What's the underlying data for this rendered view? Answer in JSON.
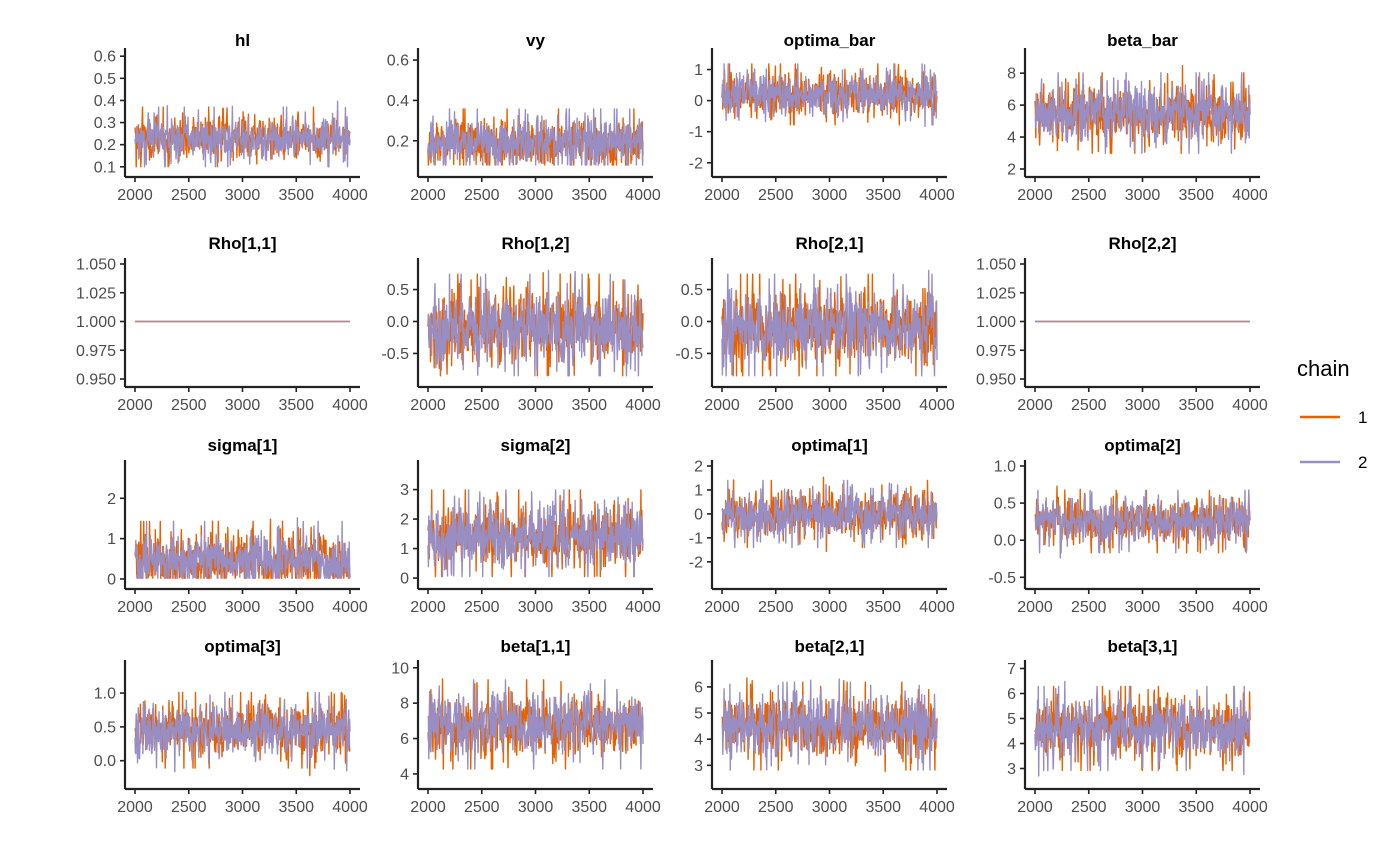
{
  "legend": {
    "title": "chain",
    "entries": [
      {
        "label": "1",
        "color": "#e66101"
      },
      {
        "label": "2",
        "color": "#998ec3"
      }
    ]
  },
  "chart_data": {
    "type": "line",
    "x_range": [
      2000,
      4000
    ],
    "x_ticks": [
      2000,
      2500,
      3000,
      3500,
      4000
    ],
    "x_tick_labels": [
      "2000",
      "2500",
      "3000",
      "3500",
      "4000"
    ],
    "legend_position": "right",
    "grid": false,
    "panels": [
      {
        "title": "hl",
        "ylim": [
          0.09,
          0.61
        ],
        "y_ticks": [
          0.1,
          0.2,
          0.3,
          0.4,
          0.5,
          0.6
        ],
        "y_tick_labels": [
          "0.1",
          "0.2",
          "0.3",
          "0.4",
          "0.5",
          "0.6"
        ],
        "center": 0.23,
        "spread": 0.05,
        "min": 0.1,
        "max": 0.57
      },
      {
        "title": "vy",
        "ylim": [
          0.06,
          0.63
        ],
        "y_ticks": [
          0.2,
          0.4,
          0.6
        ],
        "y_tick_labels": [
          "0.2",
          "0.4",
          "0.6"
        ],
        "center": 0.19,
        "spread": 0.06,
        "min": 0.08,
        "max": 0.62
      },
      {
        "title": "optima_bar",
        "ylim": [
          -2.2,
          1.5
        ],
        "y_ticks": [
          -2,
          -1,
          0,
          1
        ],
        "y_tick_labels": [
          "-2",
          "-1",
          "0",
          "1"
        ],
        "center": 0.2,
        "spread": 0.35,
        "min": -2.1,
        "max": 1.4
      },
      {
        "title": "beta_bar",
        "ylim": [
          2.0,
          9.2
        ],
        "y_ticks": [
          2,
          4,
          6,
          8
        ],
        "y_tick_labels": [
          "2",
          "4",
          "6",
          "8"
        ],
        "center": 5.5,
        "spread": 0.9,
        "min": 2.3,
        "max": 9.0
      },
      {
        "title": "Rho[1,1]",
        "ylim": [
          0.95,
          1.05
        ],
        "y_ticks": [
          0.95,
          0.975,
          1.0,
          1.025,
          1.05
        ],
        "y_tick_labels": [
          "0.950",
          "0.975",
          "1.000",
          "1.025",
          "1.050"
        ],
        "center": 1.0,
        "spread": 0,
        "min": 1.0,
        "max": 1.0
      },
      {
        "title": "Rho[1,2]",
        "ylim": [
          -0.9,
          0.9
        ],
        "y_ticks": [
          -0.5,
          0.0,
          0.5
        ],
        "y_tick_labels": [
          "-0.5",
          "0.0",
          "0.5"
        ],
        "center": -0.1,
        "spread": 0.3,
        "min": -0.85,
        "max": 0.8
      },
      {
        "title": "Rho[2,1]",
        "ylim": [
          -0.9,
          0.9
        ],
        "y_ticks": [
          -0.5,
          0.0,
          0.5
        ],
        "y_tick_labels": [
          "-0.5",
          "0.0",
          "0.5"
        ],
        "center": -0.1,
        "spread": 0.3,
        "min": -0.85,
        "max": 0.8
      },
      {
        "title": "Rho[2,2]",
        "ylim": [
          0.95,
          1.05
        ],
        "y_ticks": [
          0.95,
          0.975,
          1.0,
          1.025,
          1.05
        ],
        "y_tick_labels": [
          "0.950",
          "0.975",
          "1.000",
          "1.025",
          "1.050"
        ],
        "center": 1.0,
        "spread": 0,
        "min": 1.0,
        "max": 1.0
      },
      {
        "title": "sigma[1]",
        "ylim": [
          -0.05,
          2.8
        ],
        "y_ticks": [
          0,
          1,
          2
        ],
        "y_tick_labels": [
          "0",
          "1",
          "2"
        ],
        "center": 0.45,
        "spread": 0.35,
        "min": 0.02,
        "max": 2.6
      },
      {
        "title": "sigma[2]",
        "ylim": [
          -0.1,
          3.8
        ],
        "y_ticks": [
          0,
          1,
          2,
          3
        ],
        "y_tick_labels": [
          "0",
          "1",
          "2",
          "3"
        ],
        "center": 1.45,
        "spread": 0.55,
        "min": 0.05,
        "max": 3.6
      },
      {
        "title": "optima[1]",
        "ylim": [
          -2.8,
          2.0
        ],
        "y_ticks": [
          -2,
          -1,
          0,
          1,
          2
        ],
        "y_tick_labels": [
          "-2",
          "-1",
          "0",
          "1",
          "2"
        ],
        "center": 0.0,
        "spread": 0.5,
        "min": -2.6,
        "max": 1.7
      },
      {
        "title": "optima[2]",
        "ylim": [
          -0.55,
          1.0
        ],
        "y_ticks": [
          -0.5,
          0.0,
          0.5,
          1.0
        ],
        "y_tick_labels": [
          "-0.5",
          "0.0",
          "0.5",
          "1.0"
        ],
        "center": 0.25,
        "spread": 0.15,
        "min": -0.45,
        "max": 0.95
      },
      {
        "title": "optima[3]",
        "ylim": [
          -0.3,
          1.4
        ],
        "y_ticks": [
          0.0,
          0.5,
          1.0
        ],
        "y_tick_labels": [
          "0.0",
          "0.5",
          "1.0"
        ],
        "center": 0.45,
        "spread": 0.2,
        "min": -0.25,
        "max": 1.3
      },
      {
        "title": "beta[1,1]",
        "ylim": [
          3.6,
          10.1
        ],
        "y_ticks": [
          4,
          6,
          8,
          10
        ],
        "y_tick_labels": [
          "4",
          "6",
          "8",
          "10"
        ],
        "center": 6.8,
        "spread": 0.9,
        "min": 3.8,
        "max": 10.0
      },
      {
        "title": "beta[2,1]",
        "ylim": [
          2.4,
          6.8
        ],
        "y_ticks": [
          3,
          4,
          5,
          6
        ],
        "y_tick_labels": [
          "3",
          "4",
          "5",
          "6"
        ],
        "center": 4.5,
        "spread": 0.6,
        "min": 2.6,
        "max": 6.5
      },
      {
        "title": "beta[3,1]",
        "ylim": [
          2.5,
          7.1
        ],
        "y_ticks": [
          3,
          4,
          5,
          6,
          7
        ],
        "y_tick_labels": [
          "3",
          "4",
          "5",
          "6",
          "7"
        ],
        "center": 4.6,
        "spread": 0.6,
        "min": 2.7,
        "max": 6.9
      }
    ]
  }
}
